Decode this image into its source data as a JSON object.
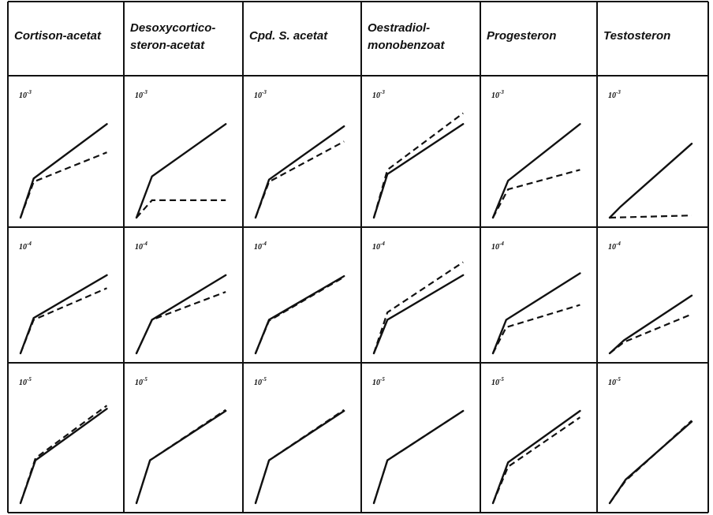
{
  "chart_data": {
    "type": "line",
    "columns": [
      "Cortison-acetat",
      "Desoxycortico-steron-acetat",
      "Cpd. S. acetat",
      "Oestradiol-monobenzoat",
      "Progesteron",
      "Testosteron"
    ],
    "rows": [
      {
        "base": "10",
        "exp": "-3"
      },
      {
        "base": "10",
        "exp": "-4"
      },
      {
        "base": "10",
        "exp": "-5"
      }
    ],
    "series_style": [
      "solid",
      "dashed"
    ],
    "panels": [
      [
        {
          "solid": [
            [
              0,
              0
            ],
            [
              0.14,
              0.36
            ],
            [
              0.92,
              0.86
            ]
          ],
          "dashed": [
            [
              0,
              0
            ],
            [
              0.14,
              0.33
            ],
            [
              0.92,
              0.6
            ]
          ]
        },
        {
          "solid": [
            [
              0,
              0
            ],
            [
              0.16,
              0.38
            ],
            [
              0.92,
              0.86
            ]
          ],
          "dashed": [
            [
              0,
              0
            ],
            [
              0.16,
              0.16
            ],
            [
              0.92,
              0.16
            ]
          ]
        },
        {
          "solid": [
            [
              0,
              0
            ],
            [
              0.14,
              0.35
            ],
            [
              0.92,
              0.84
            ]
          ],
          "dashed": [
            [
              0,
              0
            ],
            [
              0.14,
              0.33
            ],
            [
              0.92,
              0.7
            ]
          ]
        },
        {
          "solid": [
            [
              0,
              0
            ],
            [
              0.14,
              0.4
            ],
            [
              0.92,
              0.86
            ]
          ],
          "dashed": [
            [
              0,
              0
            ],
            [
              0.14,
              0.44
            ],
            [
              0.92,
              0.96
            ]
          ]
        },
        {
          "solid": [
            [
              0,
              0
            ],
            [
              0.16,
              0.34
            ],
            [
              0.92,
              0.86
            ]
          ],
          "dashed": [
            [
              0,
              0
            ],
            [
              0.16,
              0.26
            ],
            [
              0.92,
              0.44
            ]
          ]
        },
        {
          "solid": [
            [
              0,
              0
            ],
            [
              0.12,
              0.1
            ],
            [
              0.92,
              0.68
            ]
          ],
          "dashed": [
            [
              0,
              0
            ],
            [
              0.92,
              0.02
            ]
          ]
        }
      ],
      [
        {
          "solid": [
            [
              0,
              0
            ],
            [
              0.14,
              0.38
            ],
            [
              0.92,
              0.84
            ]
          ],
          "dashed": [
            [
              0,
              0
            ],
            [
              0.14,
              0.36
            ],
            [
              0.92,
              0.7
            ]
          ]
        },
        {
          "solid": [
            [
              0,
              0
            ],
            [
              0.16,
              0.36
            ],
            [
              0.92,
              0.84
            ]
          ],
          "dashed": [
            [
              0,
              0
            ],
            [
              0.16,
              0.36
            ],
            [
              0.92,
              0.66
            ]
          ]
        },
        {
          "solid": [
            [
              0,
              0
            ],
            [
              0.14,
              0.36
            ],
            [
              0.92,
              0.83
            ]
          ],
          "dashed": [
            [
              0,
              0
            ],
            [
              0.14,
              0.35
            ],
            [
              0.92,
              0.82
            ]
          ]
        },
        {
          "solid": [
            [
              0,
              0
            ],
            [
              0.14,
              0.36
            ],
            [
              0.92,
              0.84
            ]
          ],
          "dashed": [
            [
              0,
              0
            ],
            [
              0.14,
              0.44
            ],
            [
              0.92,
              0.98
            ]
          ]
        },
        {
          "solid": [
            [
              0,
              0
            ],
            [
              0.14,
              0.36
            ],
            [
              0.92,
              0.86
            ]
          ],
          "dashed": [
            [
              0,
              0
            ],
            [
              0.14,
              0.28
            ],
            [
              0.92,
              0.52
            ]
          ]
        },
        {
          "solid": [
            [
              0,
              0
            ],
            [
              0.16,
              0.14
            ],
            [
              0.92,
              0.62
            ]
          ],
          "dashed": [
            [
              0,
              0
            ],
            [
              0.16,
              0.12
            ],
            [
              0.92,
              0.42
            ]
          ]
        }
      ],
      [
        {
          "solid": [
            [
              0,
              0
            ],
            [
              0.16,
              0.4
            ],
            [
              0.92,
              0.88
            ]
          ],
          "dashed": [
            [
              0,
              0
            ],
            [
              0.16,
              0.42
            ],
            [
              0.92,
              0.91
            ]
          ]
        },
        {
          "solid": [
            [
              0,
              0
            ],
            [
              0.14,
              0.4
            ],
            [
              0.92,
              0.86
            ]
          ],
          "dashed": [
            [
              0,
              0
            ],
            [
              0.14,
              0.4
            ],
            [
              0.92,
              0.87
            ]
          ]
        },
        {
          "solid": [
            [
              0,
              0
            ],
            [
              0.14,
              0.4
            ],
            [
              0.92,
              0.86
            ]
          ],
          "dashed": [
            [
              0,
              0
            ],
            [
              0.14,
              0.4
            ],
            [
              0.92,
              0.87
            ]
          ]
        },
        {
          "solid": [
            [
              0,
              0
            ],
            [
              0.14,
              0.4
            ],
            [
              0.92,
              0.86
            ]
          ],
          "dashed": [
            [
              0,
              0
            ],
            [
              0.14,
              0.4
            ],
            [
              0.92,
              0.86
            ]
          ]
        },
        {
          "solid": [
            [
              0,
              0
            ],
            [
              0.16,
              0.38
            ],
            [
              0.92,
              0.86
            ]
          ],
          "dashed": [
            [
              0,
              0
            ],
            [
              0.16,
              0.34
            ],
            [
              0.92,
              0.8
            ]
          ]
        },
        {
          "solid": [
            [
              0,
              0
            ],
            [
              0.18,
              0.22
            ],
            [
              0.92,
              0.76
            ]
          ],
          "dashed": [
            [
              0,
              0
            ],
            [
              0.18,
              0.21
            ],
            [
              0.92,
              0.77
            ]
          ]
        }
      ]
    ],
    "grid": true,
    "legend": "none",
    "title": "",
    "xlabel": "",
    "ylabel": ""
  }
}
